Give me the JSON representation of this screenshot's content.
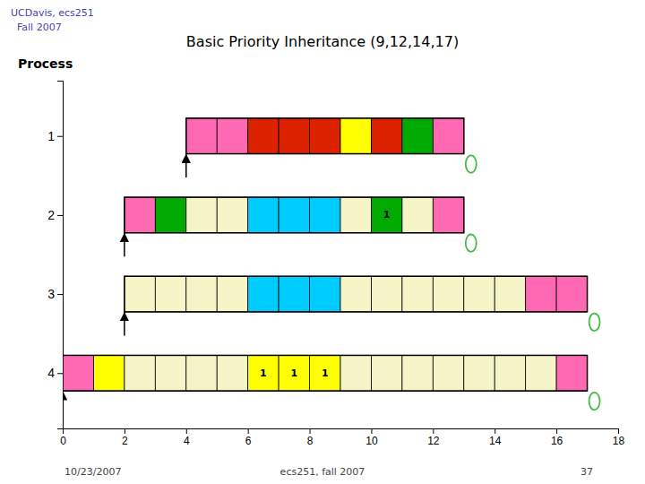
{
  "chart_data": {
    "type": "gantt",
    "title": "Basic Priority Inheritance (9,12,14,17)",
    "subtitle": "UCDavis, ecs251\n  Fall 2007",
    "ylabel": "Process",
    "annotations": [
      "10/23/2007",
      "ecs251, fall 2007",
      "37"
    ],
    "xlim": [
      0,
      18
    ],
    "xticks": [
      0,
      2,
      4,
      6,
      8,
      10,
      12,
      14,
      16,
      18
    ],
    "series": [
      {
        "name": "1",
        "start": 4,
        "end": 13,
        "arrival": 4,
        "deadline": 13,
        "x": [
          4,
          5,
          6,
          7,
          8,
          9,
          10,
          11,
          12
        ],
        "colors": [
          "#ff69b4",
          "#ff69b4",
          "#dd2200",
          "#dd2200",
          "#dd2200",
          "#ffff00",
          "#dd2200",
          "#00aa00",
          "#ff69b4"
        ],
        "labels": [
          null,
          null,
          null,
          null,
          null,
          null,
          null,
          null,
          null
        ]
      },
      {
        "name": "2",
        "start": 2,
        "end": 13,
        "arrival": 2,
        "deadline": 13,
        "x": [
          2,
          3,
          4,
          5,
          6,
          7,
          8,
          9,
          10,
          11,
          12
        ],
        "colors": [
          "#ff69b4",
          "#00aa00",
          "#f5f5c8",
          "#f5f5c8",
          "#00ccff",
          "#00ccff",
          "#00ccff",
          "#f5f5c8",
          "#00aa00",
          "#f5f5c8",
          "#ff69b4"
        ],
        "labels": [
          null,
          null,
          null,
          null,
          null,
          null,
          null,
          null,
          "1",
          null,
          null
        ]
      },
      {
        "name": "3",
        "start": 2,
        "end": 17,
        "arrival": 2,
        "deadline": 17,
        "x": [
          2,
          3,
          4,
          5,
          6,
          7,
          8,
          9,
          10,
          11,
          12,
          13,
          14,
          15,
          16
        ],
        "colors": [
          "#f5f5c8",
          "#f5f5c8",
          "#f5f5c8",
          "#f5f5c8",
          "#00ccff",
          "#00ccff",
          "#00ccff",
          "#f5f5c8",
          "#f5f5c8",
          "#f5f5c8",
          "#f5f5c8",
          "#f5f5c8",
          "#f5f5c8",
          "#ff69b4",
          "#ff69b4"
        ],
        "labels": [
          null,
          null,
          null,
          null,
          null,
          null,
          null,
          null,
          null,
          null,
          null,
          null,
          null,
          null,
          null
        ]
      },
      {
        "name": "4",
        "start": 0,
        "end": 17,
        "arrival": 0,
        "deadline": 17,
        "x": [
          0,
          1,
          2,
          3,
          4,
          5,
          6,
          7,
          8,
          9,
          10,
          11,
          12,
          13,
          14,
          15,
          16
        ],
        "colors": [
          "#ff69b4",
          "#ffff00",
          "#f5f5c8",
          "#f5f5c8",
          "#f5f5c8",
          "#f5f5c8",
          "#ffff00",
          "#ffff00",
          "#ffff00",
          "#f5f5c8",
          "#f5f5c8",
          "#f5f5c8",
          "#f5f5c8",
          "#f5f5c8",
          "#f5f5c8",
          "#f5f5c8",
          "#ff69b4"
        ],
        "labels": [
          null,
          null,
          null,
          null,
          null,
          null,
          "1",
          "1",
          "1",
          null,
          null,
          null,
          null,
          null,
          null,
          null,
          null
        ]
      }
    ]
  }
}
